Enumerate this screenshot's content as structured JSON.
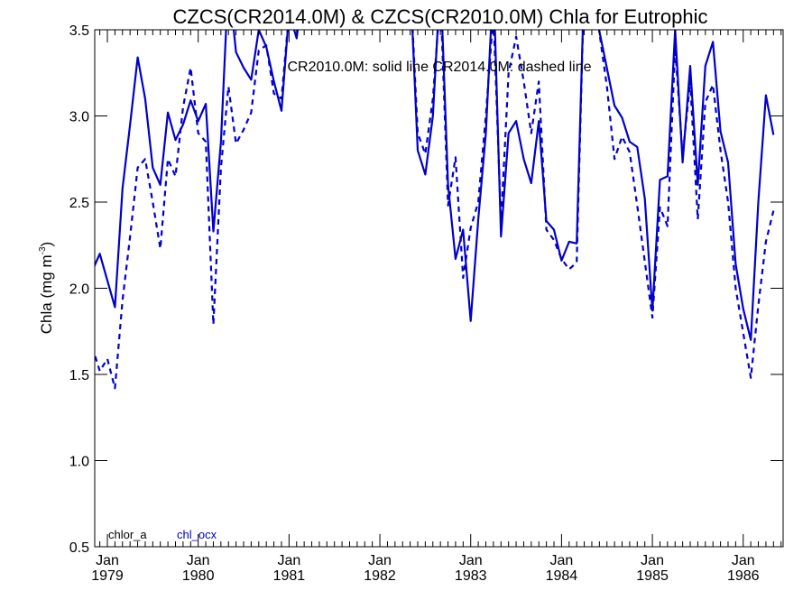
{
  "chart_data": {
    "type": "line",
    "title": "CZCS(CR2014.0M) & CZCS(CR2010.0M)  Chla for Eutrophic",
    "annotation": "CR2010.0M: solid line   CR2014.0M: dashed line",
    "ylabel": "Chla (mg m",
    "ylabel_superscript": "-3",
    "ylabel_suffix": ")",
    "ylim": [
      0.5,
      3.5
    ],
    "xlim": [
      "1978-11",
      "1986-07"
    ],
    "yticks": [
      0.5,
      1.0,
      1.5,
      2.0,
      2.5,
      3.0,
      3.5
    ],
    "ytick_labels": [
      "0.5",
      "1.0",
      "1.5",
      "2.0",
      "2.5",
      "3.0",
      "3.5"
    ],
    "xticks": [
      {
        "date": "1979-01",
        "month": "Jan",
        "year": "1979"
      },
      {
        "date": "1980-01",
        "month": "Jan",
        "year": "1980"
      },
      {
        "date": "1981-01",
        "month": "Jan",
        "year": "1981"
      },
      {
        "date": "1982-01",
        "month": "Jan",
        "year": "1982"
      },
      {
        "date": "1983-01",
        "month": "Jan",
        "year": "1983"
      },
      {
        "date": "1984-01",
        "month": "Jan",
        "year": "1984"
      },
      {
        "date": "1985-01",
        "month": "Jan",
        "year": "1985"
      },
      {
        "date": "1986-01",
        "month": "Jan",
        "year": "1986"
      }
    ],
    "legend": [
      {
        "label": "chlor_a",
        "color": "#000000"
      },
      {
        "label": "chl_ocx",
        "color": "#0000cc"
      }
    ],
    "line_color": "#0000cc",
    "series": [
      {
        "style": "solid",
        "points": [
          [
            "1978-11",
            2.1
          ],
          [
            "1978-12",
            2.2
          ],
          [
            "1979-02",
            1.89
          ],
          [
            "1979-03",
            2.58
          ],
          [
            "1979-04",
            2.95
          ],
          [
            "1979-05",
            3.34
          ],
          [
            "1979-06",
            3.1
          ],
          [
            "1979-07",
            2.7
          ],
          [
            "1979-08",
            2.6
          ],
          [
            "1979-09",
            3.02
          ],
          [
            "1979-10",
            2.86
          ],
          [
            "1979-11",
            2.95
          ],
          [
            "1979-12",
            3.09
          ],
          [
            "1980-01",
            2.97
          ],
          [
            "1980-02",
            3.07
          ],
          [
            "1980-03",
            2.33
          ],
          [
            "1980-04",
            2.85
          ],
          [
            "1980-05",
            3.8
          ],
          [
            "1980-06",
            3.37
          ],
          [
            "1980-07",
            3.28
          ],
          [
            "1980-08",
            3.21
          ],
          [
            "1980-09",
            3.5
          ],
          [
            "1980-10",
            3.4
          ],
          [
            "1980-11",
            3.2
          ],
          [
            "1980-12",
            3.03
          ],
          [
            "1981-01",
            3.6
          ],
          [
            "1981-02",
            3.45
          ],
          [
            "1981-03",
            3.8
          ],
          null,
          [
            "1982-05",
            3.8
          ],
          [
            "1982-06",
            2.8
          ],
          [
            "1982-07",
            2.66
          ],
          [
            "1982-08",
            3.0
          ],
          [
            "1982-09",
            3.8
          ],
          [
            "1982-10",
            2.6
          ],
          [
            "1982-11",
            2.17
          ],
          [
            "1982-12",
            2.34
          ],
          [
            "1983-01",
            1.81
          ],
          [
            "1983-02",
            2.4
          ],
          [
            "1983-03",
            2.9
          ],
          [
            "1983-04",
            3.8
          ],
          [
            "1983-05",
            2.3
          ],
          [
            "1983-06",
            2.9
          ],
          [
            "1983-07",
            2.97
          ],
          [
            "1983-08",
            2.75
          ],
          [
            "1983-09",
            2.61
          ],
          [
            "1983-10",
            2.97
          ],
          [
            "1983-11",
            2.39
          ],
          [
            "1983-12",
            2.34
          ],
          [
            "1984-01",
            2.16
          ],
          [
            "1984-02",
            2.27
          ],
          [
            "1984-03",
            2.26
          ],
          [
            "1984-04",
            3.8
          ],
          null,
          [
            "1984-05",
            3.8
          ],
          [
            "1984-06",
            3.49
          ],
          [
            "1984-08",
            3.06
          ],
          [
            "1984-09",
            2.99
          ],
          [
            "1984-10",
            2.85
          ],
          [
            "1984-11",
            2.82
          ],
          [
            "1984-12",
            2.52
          ],
          [
            "1985-01",
            1.87
          ],
          [
            "1985-02",
            2.63
          ],
          [
            "1985-03",
            2.65
          ],
          [
            "1985-04",
            3.5
          ],
          [
            "1985-05",
            2.73
          ],
          [
            "1985-06",
            3.29
          ],
          [
            "1985-07",
            2.6
          ],
          [
            "1985-08",
            3.29
          ],
          [
            "1985-09",
            3.43
          ],
          [
            "1985-10",
            2.91
          ],
          [
            "1985-11",
            2.73
          ],
          [
            "1985-12",
            2.14
          ],
          [
            "1986-01",
            1.88
          ],
          [
            "1986-02",
            1.7
          ],
          [
            "1986-03",
            2.5
          ],
          [
            "1986-04",
            3.12
          ],
          [
            "1986-05",
            2.89
          ]
        ]
      },
      {
        "style": "dashed",
        "points": [
          [
            "1978-11",
            1.66
          ],
          [
            "1978-12",
            1.52
          ],
          [
            "1979-01",
            1.59
          ],
          [
            "1979-02",
            1.42
          ],
          [
            "1979-03",
            1.93
          ],
          [
            "1979-04",
            2.3
          ],
          [
            "1979-05",
            2.7
          ],
          [
            "1979-06",
            2.75
          ],
          [
            "1979-07",
            2.5
          ],
          [
            "1979-08",
            2.23
          ],
          [
            "1979-09",
            2.75
          ],
          [
            "1979-10",
            2.65
          ],
          [
            "1979-11",
            3.05
          ],
          [
            "1979-12",
            3.28
          ],
          [
            "1980-01",
            2.9
          ],
          [
            "1980-02",
            2.85
          ],
          [
            "1980-03",
            1.79
          ],
          [
            "1980-04",
            2.7
          ],
          [
            "1980-05",
            3.17
          ],
          [
            "1980-06",
            2.84
          ],
          [
            "1980-07",
            2.92
          ],
          [
            "1980-08",
            3.02
          ],
          [
            "1980-09",
            3.38
          ],
          [
            "1980-10",
            3.41
          ],
          [
            "1980-11",
            3.13
          ],
          [
            "1980-12",
            3.1
          ],
          [
            "1981-01",
            3.6
          ],
          null,
          [
            "1982-05",
            3.8
          ],
          [
            "1982-06",
            2.9
          ],
          [
            "1982-07",
            2.78
          ],
          [
            "1982-08",
            3.1
          ],
          [
            "1982-09",
            3.7
          ],
          [
            "1982-10",
            2.48
          ],
          [
            "1982-11",
            2.76
          ],
          [
            "1982-12",
            2.06
          ],
          [
            "1983-01",
            2.35
          ],
          [
            "1983-02",
            2.5
          ],
          [
            "1983-03",
            3.0
          ],
          [
            "1983-04",
            3.6
          ],
          [
            "1983-05",
            2.38
          ],
          [
            "1983-06",
            3.25
          ],
          [
            "1983-07",
            3.46
          ],
          [
            "1983-08",
            3.2
          ],
          [
            "1983-09",
            2.9
          ],
          [
            "1983-10",
            3.2
          ],
          [
            "1983-11",
            2.34
          ],
          [
            "1983-12",
            2.28
          ],
          [
            "1984-01",
            2.17
          ],
          [
            "1984-02",
            2.11
          ],
          [
            "1984-03",
            2.15
          ],
          [
            "1984-04",
            3.8
          ],
          null,
          [
            "1984-05",
            3.8
          ],
          [
            "1984-07",
            3.17
          ],
          [
            "1984-08",
            2.75
          ],
          [
            "1984-09",
            2.88
          ],
          [
            "1984-10",
            2.79
          ],
          [
            "1984-11",
            2.48
          ],
          [
            "1985-01",
            1.83
          ],
          [
            "1985-02",
            2.47
          ],
          [
            "1985-03",
            2.36
          ],
          [
            "1985-04",
            3.4
          ],
          [
            "1985-05",
            2.77
          ],
          [
            "1985-06",
            3.2
          ],
          [
            "1985-07",
            2.4
          ],
          [
            "1985-08",
            3.08
          ],
          [
            "1985-09",
            3.18
          ],
          [
            "1985-10",
            2.8
          ],
          [
            "1985-11",
            2.5
          ],
          [
            "1985-12",
            2.0
          ],
          [
            "1986-01",
            1.74
          ],
          [
            "1986-02",
            1.48
          ],
          [
            "1986-03",
            1.9
          ],
          [
            "1986-04",
            2.27
          ],
          [
            "1986-05",
            2.45
          ]
        ]
      }
    ]
  }
}
